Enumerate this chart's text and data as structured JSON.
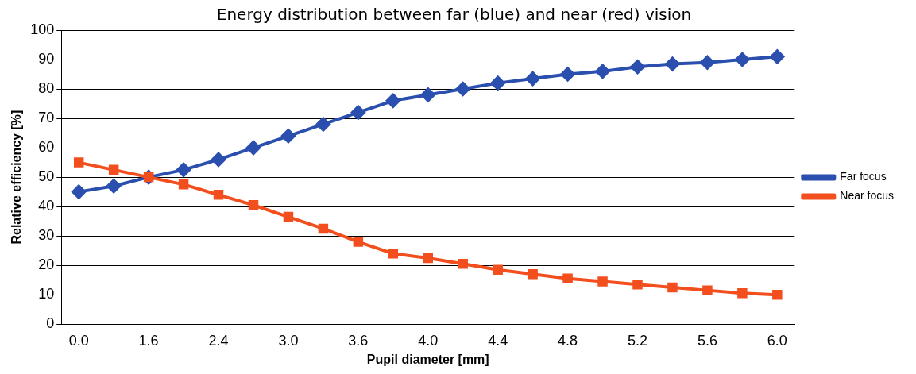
{
  "chart_data": {
    "type": "line",
    "title": "Energy distribution between far (blue) and near (red) vision",
    "xlabel": "Pupil diameter [mm]",
    "ylabel": "Relative efficiency [%]",
    "categories": [
      "0.0",
      null,
      "1.6",
      null,
      "2.4",
      null,
      "3.0",
      null,
      "3.6",
      null,
      "4.0",
      null,
      "4.4",
      null,
      "4.8",
      null,
      "5.2",
      null,
      "5.6",
      null,
      "6.0"
    ],
    "series": [
      {
        "name": "Far focus",
        "color": "#2b4fae",
        "marker": "diamond",
        "values": [
          45,
          47,
          50,
          52.5,
          56,
          60,
          64,
          68,
          72,
          76,
          78,
          80,
          82,
          83.5,
          85,
          86,
          87.5,
          88.5,
          89,
          90,
          91
        ]
      },
      {
        "name": "Near focus",
        "color": "#f24e1e",
        "marker": "square",
        "values": [
          55,
          52.5,
          50,
          47.5,
          44,
          40.5,
          36.5,
          32.5,
          28,
          24,
          22.5,
          20.5,
          18.5,
          17,
          15.5,
          14.5,
          13.5,
          12.5,
          11.5,
          10.5,
          10
        ]
      }
    ],
    "ylim": [
      0,
      100
    ],
    "yticks": [
      0,
      10,
      20,
      30,
      40,
      50,
      60,
      70,
      80,
      90,
      100
    ],
    "grid": "y",
    "legend": "right",
    "line_style": "solid"
  }
}
